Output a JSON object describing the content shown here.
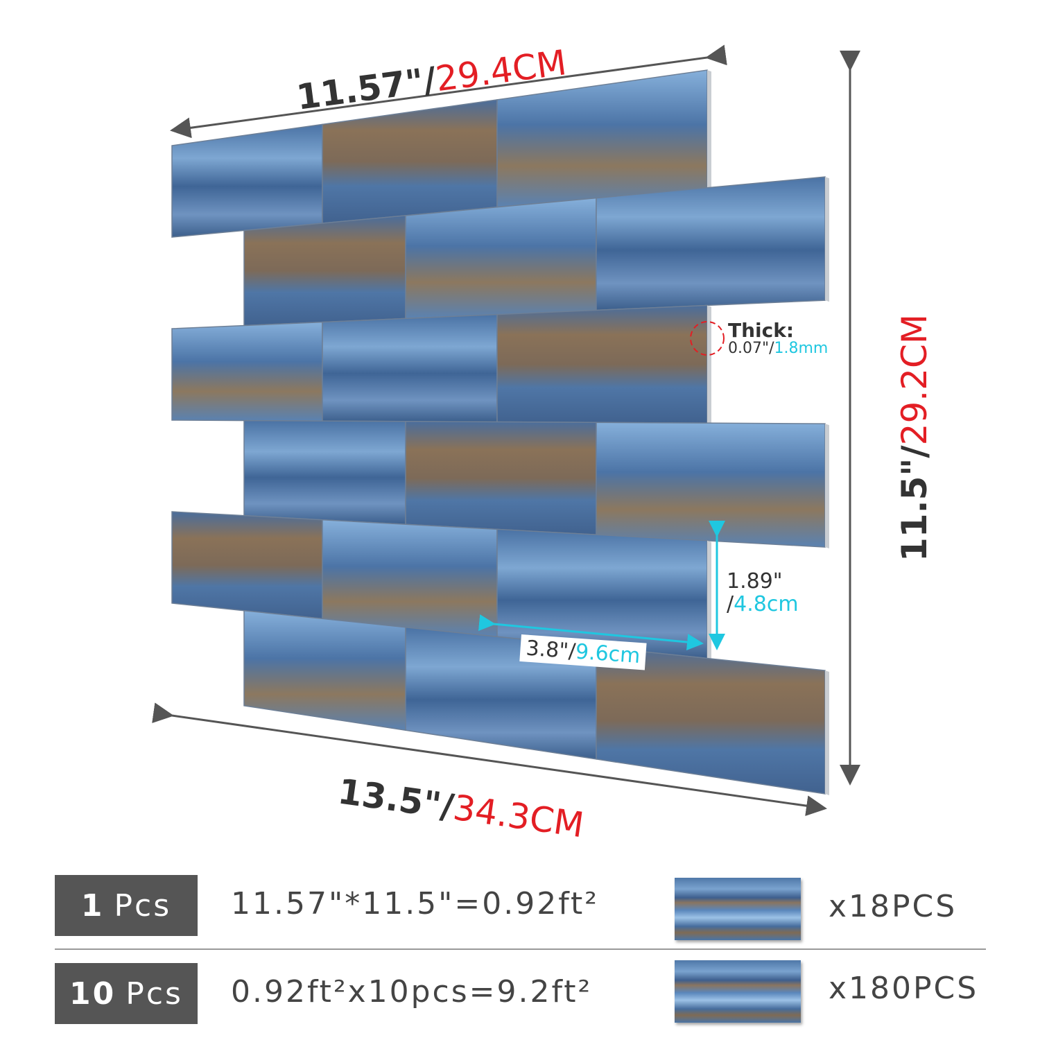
{
  "dimensions": {
    "top_width_in": "11.57\"/",
    "top_width_cm": "29.4CM",
    "bottom_width_in": "13.5\"/",
    "bottom_width_cm": "34.3CM",
    "height_in": "11.5\"/",
    "height_cm": "29.2CM",
    "thick_label": "Thick:",
    "thick_in": "0.07\"/",
    "thick_mm": "1.8mm",
    "tile_height_in": "1.89\"",
    "tile_height_cm": "4.8cm",
    "tile_width_in": "3.8\"/",
    "tile_width_cm": "9.6cm",
    "slash": "/"
  },
  "packages": [
    {
      "qty": "1",
      "unit": "Pcs",
      "formula": "11.57\"*11.5\"=0.92ft²",
      "count": "x18PCS"
    },
    {
      "qty": "10",
      "unit": "Pcs",
      "formula": "0.92ft²x10pcs=9.2ft²",
      "count": "x180PCS"
    }
  ],
  "colors": {
    "accent_red": "#e31e24",
    "accent_cyan": "#1fc7e0",
    "box_gray": "#555555"
  }
}
